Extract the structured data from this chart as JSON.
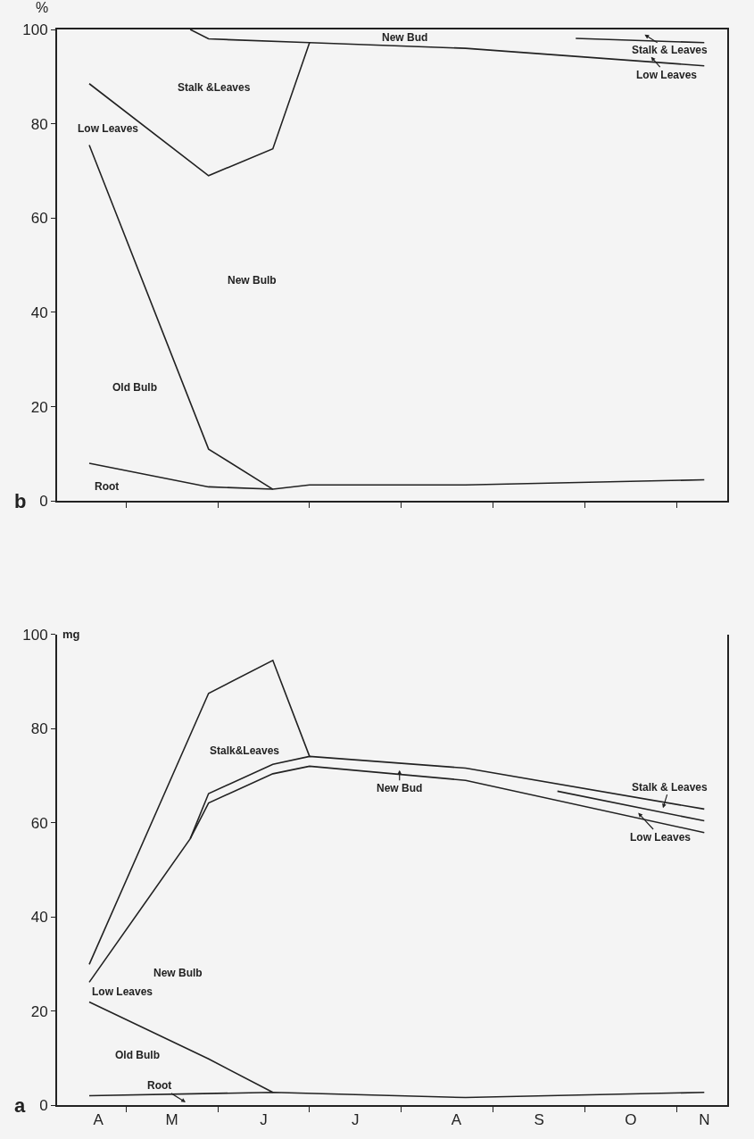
{
  "chart_data": [
    {
      "type": "line",
      "ylabel": "%",
      "ylim": [
        0,
        100
      ],
      "yticks": [
        0,
        20,
        40,
        60,
        80,
        100
      ],
      "tick_labels": "y",
      "categories": [
        null,
        null,
        null,
        null,
        null,
        null,
        null,
        null,
        null,
        null,
        null,
        null,
        null,
        null,
        null,
        null,
        null,
        null,
        null,
        null,
        null,
        null,
        null,
        null,
        null,
        null,
        null,
        null,
        null,
        null,
        null,
        null,
        null,
        null,
        null,
        null,
        null,
        null,
        null,
        null,
        null,
        null,
        null,
        null,
        null,
        null,
        null,
        null,
        null,
        null,
        null,
        null,
        null,
        null,
        null,
        null,
        null,
        null,
        null,
        null,
        null,
        null,
        null,
        null,
        null,
        null,
        null,
        null,
        null,
        null,
        null,
        null,
        null
      ],
      "series": [
        {
          "color": "#222222",
          "values": [
            null,
            null,
            null,
            8,
            null,
            null,
            null,
            null,
            null,
            null,
            null,
            null,
            null,
            null,
            null,
            null,
            3,
            null,
            null,
            null,
            null,
            null,
            null,
            2.5,
            null,
            null,
            null,
            3.4,
            null,
            null,
            null,
            null,
            null,
            null,
            null,
            null,
            null,
            null,
            null,
            null,
            null,
            null,
            null,
            null,
            3.4,
            null,
            null,
            null,
            null,
            null,
            null,
            null,
            null,
            null,
            null,
            null,
            null,
            null,
            null,
            null,
            null,
            null,
            null,
            null,
            null,
            null,
            null,
            null,
            null,
            null,
            4.5,
            null,
            null
          ]
        },
        {
          "color": "#222222",
          "values": [
            null,
            null,
            null,
            75.5,
            null,
            null,
            null,
            null,
            null,
            null,
            null,
            null,
            null,
            null,
            null,
            null,
            11,
            null,
            null,
            null,
            null,
            null,
            null,
            2.5,
            null,
            null,
            null,
            null,
            null,
            null,
            null,
            null,
            null,
            null,
            null,
            null,
            null,
            null,
            null,
            null,
            null,
            null,
            null,
            null,
            null,
            null,
            null,
            null,
            null,
            null,
            null,
            null,
            null,
            null,
            null,
            null,
            null,
            null,
            null,
            null,
            null,
            null,
            null,
            null,
            null,
            null,
            null,
            null,
            null,
            null,
            null,
            null,
            null
          ]
        },
        {
          "color": "#222222",
          "values": [
            null,
            null,
            null,
            88.5,
            null,
            null,
            null,
            null,
            null,
            null,
            null,
            null,
            null,
            null,
            null,
            null,
            69,
            null,
            null,
            null,
            null,
            null,
            null,
            74.7,
            null,
            null,
            null,
            97.2,
            null,
            null,
            null,
            null,
            null,
            null,
            null,
            null,
            null,
            null,
            null,
            null,
            null,
            null,
            null,
            null,
            null,
            null,
            null,
            null,
            null,
            null,
            null,
            null,
            null,
            null,
            null,
            null,
            null,
            null,
            null,
            null,
            null,
            null,
            null,
            null,
            null,
            null,
            null,
            null,
            null,
            null,
            null,
            null,
            null
          ]
        },
        {
          "color": "#222222",
          "values": [
            null,
            null,
            null,
            null,
            null,
            null,
            null,
            null,
            null,
            null,
            null,
            null,
            null,
            null,
            100,
            null,
            98,
            null,
            null,
            null,
            null,
            null,
            null,
            null,
            null,
            null,
            null,
            97.2,
            null,
            null,
            null,
            null,
            null,
            null,
            null,
            null,
            null,
            null,
            null,
            null,
            null,
            null,
            null,
            null,
            96,
            null,
            null,
            null,
            null,
            null,
            null,
            null,
            null,
            null,
            null,
            null,
            null,
            null,
            null,
            null,
            null,
            null,
            null,
            null,
            null,
            null,
            null,
            null,
            null,
            null,
            92.3,
            null,
            null
          ]
        },
        {
          "color": "#222222",
          "values": [
            null,
            null,
            null,
            null,
            null,
            null,
            null,
            null,
            null,
            null,
            null,
            null,
            null,
            null,
            null,
            null,
            null,
            null,
            null,
            null,
            null,
            null,
            null,
            null,
            null,
            null,
            null,
            null,
            null,
            null,
            null,
            null,
            null,
            null,
            null,
            null,
            null,
            null,
            null,
            null,
            null,
            null,
            null,
            null,
            null,
            null,
            null,
            null,
            null,
            null,
            null,
            null,
            null,
            null,
            null,
            null,
            98.1,
            null,
            null,
            null,
            null,
            null,
            null,
            null,
            null,
            null,
            null,
            null,
            null,
            null,
            97.2,
            null,
            null
          ]
        }
      ],
      "annotations": [
        "New Bud",
        "Stalk &Leaves",
        "Low Leaves",
        "New Bulb",
        "Old Bulb",
        "Root",
        "Stalk & Leaves",
        "Low Leaves",
        "b"
      ]
    },
    {
      "type": "line",
      "ylabel": "mg",
      "ylim": [
        0,
        100
      ],
      "yticks": [
        0,
        20,
        40,
        60,
        80,
        100
      ],
      "categories": [
        null,
        null,
        null,
        null,
        "A",
        null,
        null,
        null,
        null,
        null,
        null,
        null,
        "M",
        null,
        null,
        null,
        null,
        null,
        null,
        null,
        null,
        null,
        "J",
        null,
        null,
        null,
        null,
        null,
        null,
        null,
        null,
        null,
        "J",
        null,
        null,
        null,
        null,
        null,
        null,
        null,
        null,
        null,
        null,
        "A",
        null,
        null,
        null,
        null,
        null,
        null,
        null,
        null,
        "S",
        null,
        null,
        null,
        null,
        null,
        null,
        null,
        null,
        null,
        "O",
        null,
        null,
        null,
        null,
        null,
        null,
        null,
        "N",
        null,
        null
      ],
      "series": [
        {
          "color": "#222222",
          "values": [
            null,
            null,
            null,
            2,
            null,
            null,
            null,
            null,
            null,
            null,
            null,
            null,
            null,
            null,
            null,
            null,
            null,
            null,
            null,
            null,
            null,
            null,
            null,
            2.7,
            null,
            null,
            null,
            null,
            null,
            null,
            null,
            null,
            null,
            null,
            null,
            null,
            null,
            null,
            null,
            null,
            null,
            null,
            null,
            null,
            1.6,
            null,
            null,
            null,
            null,
            null,
            null,
            null,
            null,
            null,
            null,
            null,
            null,
            null,
            null,
            null,
            null,
            null,
            null,
            null,
            null,
            null,
            null,
            null,
            null,
            null,
            2.7,
            null,
            null
          ]
        },
        {
          "color": "#222222",
          "values": [
            null,
            null,
            null,
            21.9,
            null,
            null,
            null,
            null,
            null,
            null,
            null,
            null,
            null,
            null,
            null,
            null,
            9.8,
            null,
            null,
            null,
            null,
            null,
            null,
            2.7,
            null,
            null,
            null,
            null,
            null,
            null,
            null,
            null,
            null,
            null,
            null,
            null,
            null,
            null,
            null,
            null,
            null,
            null,
            null,
            null,
            null,
            null,
            null,
            null,
            null,
            null,
            null,
            null,
            null,
            null,
            null,
            null,
            null,
            null,
            null,
            null,
            null,
            null,
            null,
            null,
            null,
            null,
            null,
            null,
            null,
            null,
            null,
            null,
            null
          ]
        },
        {
          "color": "#222222",
          "values": [
            null,
            null,
            null,
            26.1,
            null,
            null,
            null,
            null,
            null,
            null,
            null,
            null,
            null,
            null,
            56.6,
            null,
            64.2,
            null,
            null,
            null,
            null,
            null,
            null,
            70.4,
            null,
            null,
            null,
            72,
            null,
            null,
            null,
            null,
            null,
            null,
            null,
            null,
            null,
            null,
            null,
            null,
            null,
            null,
            null,
            null,
            69,
            null,
            null,
            null,
            null,
            null,
            null,
            null,
            null,
            null,
            null,
            null,
            null,
            null,
            null,
            null,
            null,
            null,
            null,
            null,
            null,
            null,
            null,
            null,
            null,
            null,
            57.9,
            null,
            null
          ]
        },
        {
          "color": "#222222",
          "values": [
            null,
            null,
            null,
            null,
            null,
            null,
            null,
            null,
            null,
            null,
            null,
            null,
            null,
            null,
            56.6,
            null,
            66.2,
            null,
            null,
            null,
            null,
            null,
            null,
            72.4,
            null,
            null,
            null,
            74.1,
            null,
            null,
            null,
            null,
            null,
            null,
            null,
            null,
            null,
            null,
            null,
            null,
            null,
            null,
            null,
            null,
            71.6,
            null,
            null,
            null,
            null,
            null,
            null,
            null,
            null,
            null,
            null,
            null,
            null,
            null,
            null,
            null,
            null,
            null,
            null,
            null,
            null,
            null,
            null,
            null,
            null,
            null,
            62.9,
            null,
            null
          ]
        },
        {
          "color": "#222222",
          "values": [
            null,
            null,
            null,
            29.9,
            null,
            null,
            null,
            null,
            null,
            null,
            null,
            null,
            null,
            null,
            null,
            null,
            87.5,
            null,
            null,
            null,
            null,
            null,
            null,
            94.5,
            null,
            null,
            null,
            74.1,
            null,
            null,
            null,
            null,
            null,
            null,
            null,
            null,
            null,
            null,
            null,
            null,
            null,
            null,
            null,
            null,
            null,
            null,
            null,
            null,
            null,
            null,
            null,
            null,
            null,
            null,
            null,
            null,
            null,
            null,
            null,
            null,
            null,
            null,
            null,
            null,
            null,
            null,
            null,
            null,
            null,
            null,
            null,
            null,
            null
          ]
        },
        {
          "color": "#222222",
          "values": [
            null,
            null,
            null,
            null,
            null,
            null,
            null,
            null,
            null,
            null,
            null,
            null,
            null,
            null,
            null,
            null,
            null,
            null,
            null,
            null,
            null,
            null,
            null,
            null,
            null,
            null,
            null,
            null,
            null,
            null,
            null,
            null,
            null,
            null,
            null,
            null,
            null,
            null,
            null,
            null,
            null,
            null,
            null,
            null,
            null,
            null,
            null,
            null,
            null,
            null,
            null,
            null,
            null,
            null,
            66.7,
            null,
            null,
            null,
            null,
            null,
            null,
            null,
            null,
            null,
            null,
            null,
            null,
            null,
            null,
            null,
            60.4,
            null,
            null
          ]
        }
      ],
      "annotations": [
        "Stalk&Leaves",
        "New Bud",
        "Stalk & Leaves",
        "Low Leaves",
        "New Bulb",
        "Low Leaves",
        "Old Bulb",
        "Root",
        "a"
      ]
    }
  ]
}
